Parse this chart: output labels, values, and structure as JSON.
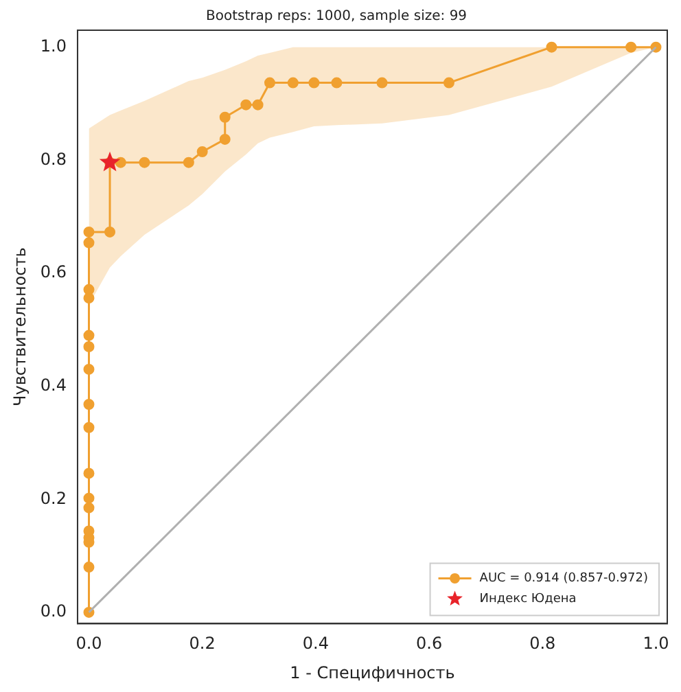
{
  "chart_data": {
    "type": "line",
    "title": "Bootstrap reps: 1000, sample size: 99",
    "xlabel": "1 - Специфичность",
    "ylabel": "Чувствительность",
    "xlim": [
      -0.02,
      1.02
    ],
    "ylim": [
      -0.02,
      1.03
    ],
    "xticks": [
      {
        "value": 0,
        "label": "0.0"
      },
      0.2,
      0.4,
      0.6,
      0.8,
      {
        "value": 1,
        "label": "1.0"
      }
    ],
    "yticks": [
      {
        "value": 0,
        "label": "0.0"
      },
      0.2,
      0.4,
      0.6,
      0.8,
      {
        "value": 1,
        "label": "1.0"
      }
    ],
    "grid": false,
    "legend": "bottom right",
    "series": [
      {
        "type": "line",
        "color": "#b0b0b0",
        "marker": "none",
        "x": [
          0,
          1
        ],
        "values": [
          0,
          1
        ]
      },
      {
        "type": "line",
        "name": "AUC = 0.914 (0.857-0.972)",
        "color": "#f0a030",
        "marker": "circle",
        "line_style": "solid",
        "x": [
          0,
          0,
          0,
          0,
          0,
          0,
          0,
          0,
          0,
          0,
          0,
          0,
          0,
          0,
          0,
          0,
          0,
          0.037,
          0.037,
          0.056,
          0.098,
          0.176,
          0.2,
          0.24,
          0.24,
          0.277,
          0.298,
          0.319,
          0.36,
          0.397,
          0.437,
          0.517,
          0.635,
          0.816,
          0.956,
          1
        ],
        "values": [
          0,
          0.08,
          0.124,
          0.132,
          0.144,
          0.185,
          0.202,
          0.246,
          0.327,
          0.368,
          0.43,
          0.47,
          0.49,
          0.556,
          0.571,
          0.654,
          0.673,
          0.673,
          0.796,
          0.796,
          0.796,
          0.796,
          0.815,
          0.837,
          0.876,
          0.898,
          0.898,
          0.937,
          0.937,
          0.937,
          0.937,
          0.937,
          0.937,
          1,
          1,
          1
        ],
        "lower": [
          null,
          null,
          null,
          null,
          null,
          null,
          null,
          null,
          null,
          null,
          null,
          null,
          null,
          0.544,
          0.544,
          0.544,
          0.544,
          0.61,
          0.61,
          0.63,
          0.668,
          0.72,
          0.74,
          0.78,
          0.78,
          0.81,
          0.83,
          0.84,
          0.85,
          0.86,
          0.862,
          0.865,
          0.88,
          0.93,
          0.99,
          1
        ],
        "upper": [
          null,
          null,
          null,
          null,
          null,
          null,
          null,
          null,
          null,
          null,
          null,
          null,
          null,
          0.856,
          0.856,
          0.856,
          0.856,
          0.88,
          0.88,
          0.888,
          0.905,
          0.94,
          0.946,
          0.96,
          0.96,
          0.975,
          0.985,
          0.99,
          1,
          1,
          1,
          1,
          1,
          1,
          1,
          1
        ]
      },
      {
        "type": "scatter",
        "name": "Индекс Юдена",
        "color": "#e8232a",
        "marker": "star",
        "x": [
          0.037
        ],
        "values": [
          0.796
        ]
      }
    ]
  }
}
